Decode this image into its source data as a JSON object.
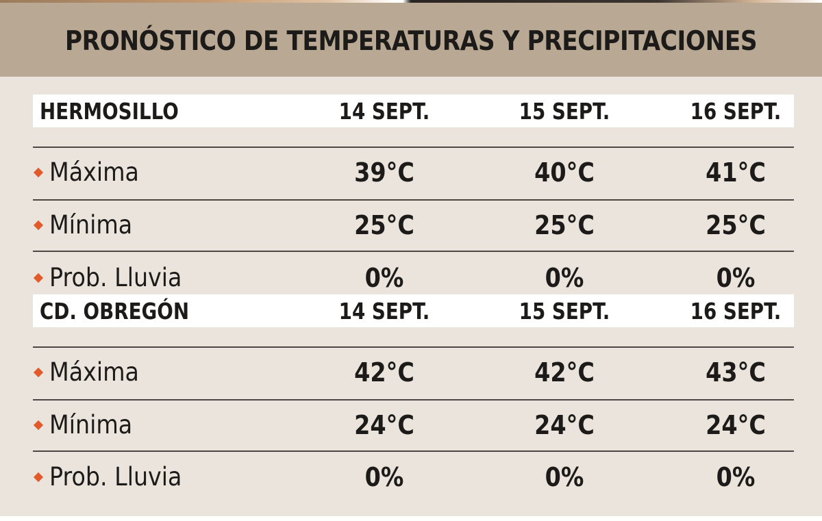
{
  "title": "PRONÓSTICO DE TEMPERATURAS Y PRECIPITACIONES",
  "colors": {
    "header_bg": "#b9a994",
    "body_bg": "#eae4dc",
    "bullet": "#e2592a",
    "text": "#1d1b19"
  },
  "cities": [
    {
      "name": "HERMOSILLO",
      "dates": [
        "14 SEPT.",
        "15 SEPT.",
        "16 SEPT."
      ],
      "rows": [
        {
          "label": "Máxima",
          "values": [
            "39°C",
            "40°C",
            "41°C"
          ]
        },
        {
          "label": "Mínima",
          "values": [
            "25°C",
            "25°C",
            "25°C"
          ]
        },
        {
          "label": "Prob. Lluvia",
          "values": [
            "0%",
            "0%",
            "0%"
          ]
        }
      ]
    },
    {
      "name": "CD. OBREGÓN",
      "dates": [
        "14 SEPT.",
        "15 SEPT.",
        "16 SEPT."
      ],
      "rows": [
        {
          "label": "Máxima",
          "values": [
            "42°C",
            "42°C",
            "43°C"
          ]
        },
        {
          "label": "Mínima",
          "values": [
            "24°C",
            "24°C",
            "24°C"
          ]
        },
        {
          "label": "Prob. Lluvia",
          "values": [
            "0%",
            "0%",
            "0%"
          ]
        }
      ]
    }
  ]
}
